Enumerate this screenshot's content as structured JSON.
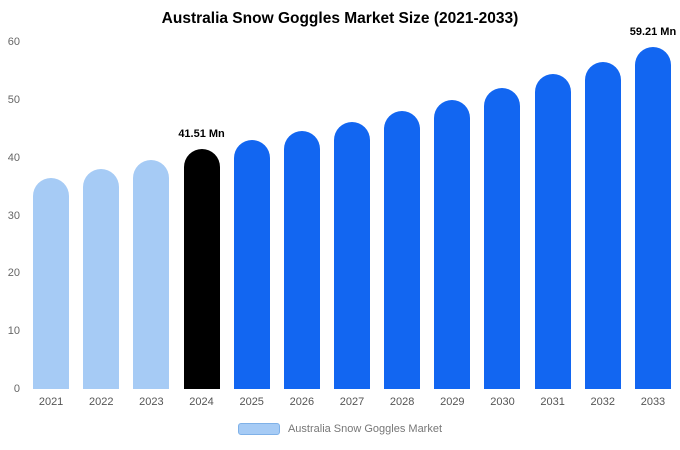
{
  "title": "Australia Snow Goggles Market Size (2021-2033)",
  "legend": {
    "label": "Australia Snow Goggles Market",
    "swatch_color": "#A6CBF5"
  },
  "colors": {
    "historical_bar": "#A6CBF5",
    "base_year_bar": "#000000",
    "forecast_bar": "#1266F1",
    "axis_text": "#666666",
    "annotation_text": "#000000"
  },
  "chart_data": {
    "type": "bar",
    "title": "Australia Snow Goggles Market Size (2021-2033)",
    "categories": [
      "2021",
      "2022",
      "2023",
      "2024",
      "2025",
      "2026",
      "2027",
      "2028",
      "2029",
      "2030",
      "2031",
      "2032",
      "2033"
    ],
    "values": [
      36.5,
      38.0,
      39.6,
      41.51,
      43.0,
      44.6,
      46.2,
      48.0,
      50.0,
      52.0,
      54.4,
      56.5,
      59.21
    ],
    "unit": "Mn",
    "bar_colors": [
      "#A6CBF5",
      "#A6CBF5",
      "#A6CBF5",
      "#000000",
      "#1266F1",
      "#1266F1",
      "#1266F1",
      "#1266F1",
      "#1266F1",
      "#1266F1",
      "#1266F1",
      "#1266F1",
      "#1266F1"
    ],
    "annotations": [
      {
        "index": 3,
        "category": "2024",
        "text": "41.51 Mn"
      },
      {
        "index": 12,
        "category": "2033",
        "text": "59.21 Mn"
      }
    ],
    "xlabel": "",
    "ylabel": "",
    "ylim": [
      0,
      60
    ],
    "yticks": [
      0,
      10,
      20,
      30,
      40,
      50,
      60
    ],
    "grid": false,
    "legend_position": "bottom"
  }
}
